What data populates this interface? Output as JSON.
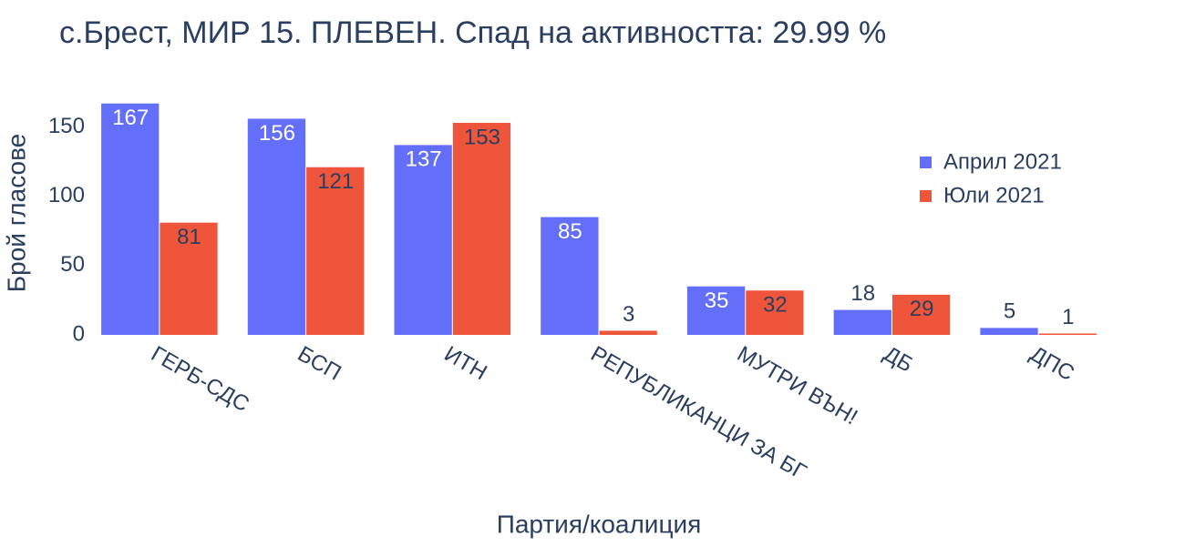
{
  "chart_data": {
    "type": "bar",
    "title": "с.Брест, МИР 15. ПЛЕВЕН. Спад на активността: 29.99 %",
    "xlabel": "Партия/коалиция",
    "ylabel": "Брой гласове",
    "categories": [
      "ГЕРБ-СДС",
      "БСП",
      "ИТН",
      "РЕПУБЛИКАНЦИ ЗА БГ",
      "МУТРИ ВЪН!",
      "ДБ",
      "ДПС"
    ],
    "series": [
      {
        "name": "Април 2021",
        "color": "#636efa",
        "label_color": "#ffffff",
        "values": [
          167,
          156,
          137,
          85,
          35,
          18,
          5
        ]
      },
      {
        "name": "Юли 2021",
        "color": "#ef553b",
        "label_color": "#2a3f5f",
        "values": [
          81,
          121,
          153,
          3,
          32,
          29,
          1
        ]
      }
    ],
    "ylim": [
      0,
      176
    ],
    "yticks": [
      0,
      50,
      100,
      150
    ],
    "grid": false,
    "legend": "top-right"
  }
}
